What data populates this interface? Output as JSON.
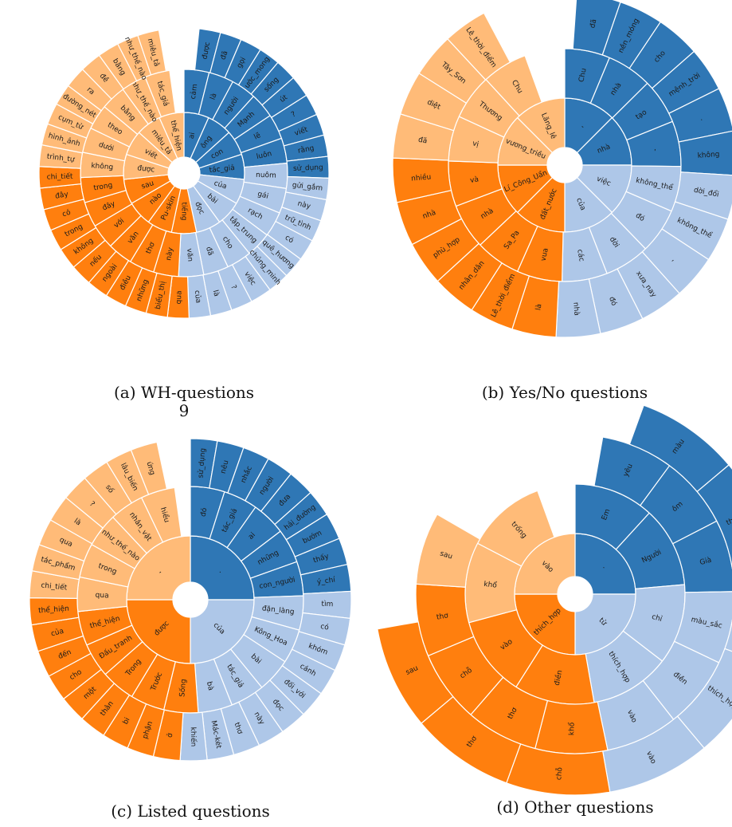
{
  "colors": {
    "blue_dark": "#2f77b5",
    "blue_light": "#aec7e8",
    "orange_dark": "#ff7f0e",
    "orange_light": "#ffbb78"
  },
  "page_number": "9",
  "chart_data": [
    {
      "type": "sunburst",
      "caption": "(a) WH-questions",
      "rings": [
        {
          "level": 1,
          "labels": [
            "ai",
            "ông",
            "con",
            "tác_giả",
            "của",
            "bài",
            "đọc",
            "tiếng",
            "Pu-skin",
            "nào",
            "sau",
            "được",
            "viết",
            "miêu_tả",
            "thể_hiện"
          ]
        },
        {
          "level": 2,
          "labels": [
            "cảm",
            "là",
            "người",
            "Mạnh",
            "lẽ",
            "luôn",
            "nuôm",
            "gái",
            "rạch",
            "tập_trung",
            "cho",
            "đã",
            "văn",
            "này",
            "thơ",
            "văn",
            "với",
            "đây",
            "trong",
            "không",
            "dưới",
            "theo",
            "bằng",
            "như_thế_nào",
            "tác_giả"
          ]
        },
        {
          "level": 3,
          "labels": [
            "được",
            "đã",
            "gọi",
            "ước_mong",
            "sống",
            "út",
            "?",
            "viết",
            "rằng",
            "sử_dụng",
            "gửi_gắm",
            "này",
            "trữ_tình",
            "có",
            "quê_hương",
            "chúng_minh",
            "việc",
            "?",
            "là",
            "của",
            "qua",
            "biểu_thị",
            "những",
            "điều",
            "ngoài",
            "nếu",
            "không",
            "trong",
            "có",
            "đây",
            "chi_tiết",
            "trình_tự",
            "hình_ảnh",
            "cụm_từ",
            "đường_nét",
            "ra",
            "đề",
            "bằng",
            "như_thế_nào",
            "miêu_tả"
          ]
        }
      ]
    },
    {
      "type": "sunburst",
      "caption": "(b) Yes/No questions",
      "rings": [
        {
          "level": 1,
          "labels": [
            ",",
            "nhà",
            "việc",
            "của",
            "đất_nước",
            "Lí_Công_Uẩn",
            "vương_triều",
            "Lăng_lê"
          ]
        },
        {
          "level": 2,
          "labels": [
            "Chu",
            "nhà",
            "tạo",
            ",",
            "không_thể",
            "đó",
            "đời",
            "các",
            "vua",
            "Sa_Pa",
            "nhà",
            "và",
            "vị",
            "Thương",
            "Chu"
          ]
        },
        {
          "level": 3,
          "labels": [
            "đã",
            "nền_móng",
            "cho",
            "mệnh_trời",
            ".",
            "không",
            "dời_đổi",
            "không_thể",
            ",",
            "xưa_nay",
            "đó",
            "nhà",
            "là",
            "Lê_thời_điểm",
            "nhân_dân",
            "phù_hợp",
            "nhà",
            "nhiều",
            "đã",
            "diệt",
            "Tây_Sơn",
            "Lê_thời_điểm"
          ]
        }
      ]
    },
    {
      "type": "sunburst",
      "caption": "(c) Listed questions",
      "rings": [
        {
          "level": 1,
          "labels": [
            ".",
            "của",
            "được",
            ","
          ]
        },
        {
          "level": 2,
          "labels": [
            "đó",
            "tác_giả",
            "ai",
            "những",
            "con_người",
            "đặn_làng",
            "Kông_Hoa",
            "bài",
            "tác_giả",
            "bà",
            "Sống",
            "Trước",
            "Trong",
            "Đấu_tranh",
            "thể_hiện",
            "qua",
            "trong",
            "như_thế_nào",
            "nhân_vật",
            "hiểu"
          ]
        },
        {
          "level": 3,
          "labels": [
            "sử_dụng",
            "nêu",
            "nhắc",
            "người",
            "đưa",
            "hải_đường",
            "bướm",
            "thấy",
            "ý_chí",
            "tìm",
            "có",
            "khóm",
            "cánh",
            "đối_với",
            "đọc",
            "này",
            "thơ",
            "Mác-két",
            "khiến",
            "ở",
            "phận",
            "bi",
            "thân",
            "một",
            "cho",
            "đến",
            "của",
            "thể_hiện",
            "chi_tiết",
            "tác_phẩm",
            "qua",
            "là",
            "?",
            "số",
            "lâu_biến",
            "ứng"
          ]
        }
      ]
    },
    {
      "type": "sunburst",
      "caption": "(d) Other questions",
      "rings": [
        {
          "level": 1,
          "labels": [
            ".",
            "từ",
            "thích_hợp",
            "vào"
          ]
        },
        {
          "level": 2,
          "labels": [
            "Em",
            "Người",
            "chỉ",
            "thích_hợp",
            "điền",
            "vào",
            "khổ",
            "trống"
          ]
        },
        {
          "level": 3,
          "labels": [
            "yêu",
            "ôm",
            "Già",
            "màu_sắc",
            "điền",
            "vào",
            "khổ",
            "thơ",
            "chỗ",
            "thơ",
            "sau"
          ]
        },
        {
          "level": 4,
          "labels": [
            "màu",
            "thương",
            "vùng",
            "thích_hợp",
            "vào",
            "chỗ",
            "thơ",
            "sau"
          ]
        }
      ]
    }
  ]
}
